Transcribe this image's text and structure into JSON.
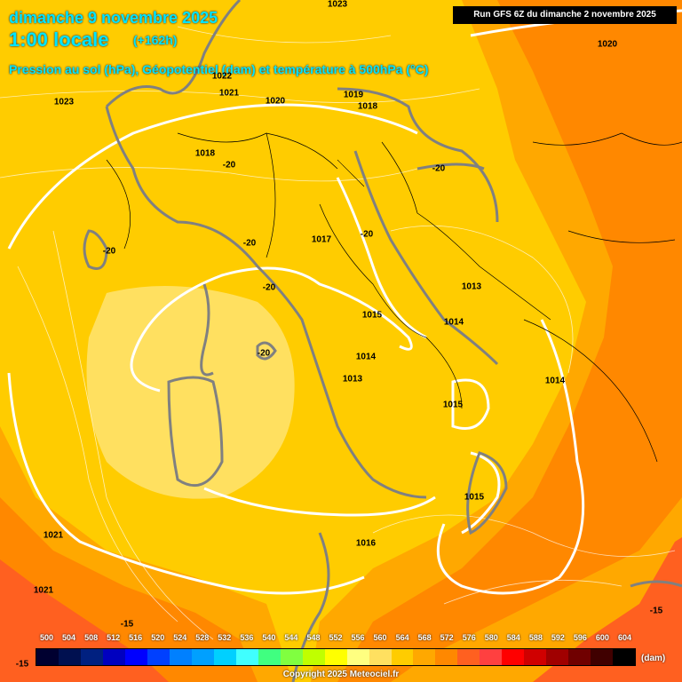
{
  "header": {
    "date": "dimanche 9 novembre 2025",
    "time": "1:00 locale",
    "lead": "(+162h)",
    "parameters": "Pression au sol (hPa), Géopotentiel (dam) et température à 500hPa (°C)",
    "run": "Run GFS 6Z du dimanche 2 novembre 2025"
  },
  "pressure_labels": [
    "1023",
    "1020",
    "1022",
    "1021",
    "1020",
    "1019",
    "1018",
    "1023",
    "1018",
    "1017",
    "1013",
    "1015",
    "1014",
    "1014",
    "1013",
    "1015",
    "1014",
    "1015",
    "1016",
    "1021",
    "1021"
  ],
  "temperature_labels": [
    "-20",
    "-20",
    "-20",
    "-20",
    "-20",
    "-20",
    "-20",
    "-15",
    "-15",
    "-15"
  ],
  "legend": {
    "values": [
      "500",
      "504",
      "508",
      "512",
      "516",
      "520",
      "524",
      "528",
      "532",
      "536",
      "540",
      "544",
      "548",
      "552",
      "556",
      "560",
      "564",
      "568",
      "572",
      "576",
      "580",
      "584",
      "588",
      "592",
      "596",
      "600",
      "604"
    ],
    "colors": [
      "#000030",
      "#001050",
      "#002080",
      "#0000c0",
      "#0000ff",
      "#0040ff",
      "#0080ff",
      "#00a0ff",
      "#00d0ff",
      "#40ffff",
      "#40ff80",
      "#80ff40",
      "#c0ff00",
      "#ffff00",
      "#ffff80",
      "#ffe060",
      "#ffcc00",
      "#ffa800",
      "#ff8800",
      "#ff6020",
      "#ff4040",
      "#ff0000",
      "#d00000",
      "#a00000",
      "#700000",
      "#400000",
      "#000000"
    ],
    "unit": "(dam)"
  },
  "copyright": "Copyright 2025 Meteociel.fr"
}
